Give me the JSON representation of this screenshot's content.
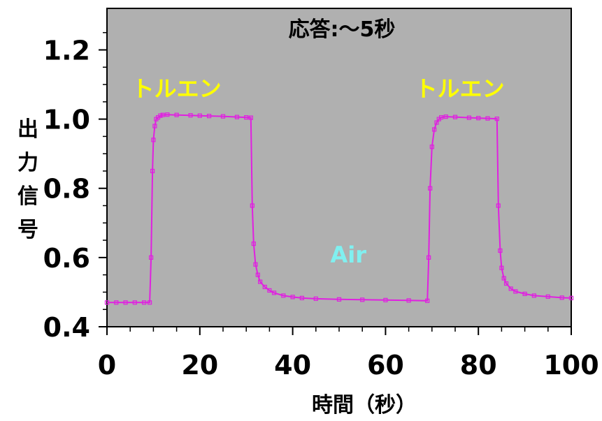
{
  "chart_data": {
    "type": "line",
    "title": "応答:～5秒",
    "xlabel": "時間（秒）",
    "ylabel": "出力信号",
    "xlim": [
      0,
      100
    ],
    "ylim": [
      0.4,
      1.32
    ],
    "x_ticks": [
      "0",
      "20",
      "40",
      "60",
      "80",
      "100"
    ],
    "y_ticks": [
      "0.4",
      "0.6",
      "0.8",
      "1.0",
      "1.2"
    ],
    "grid": false,
    "background_color": "#b0b0b0",
    "series_color": "#e020e0",
    "annotations": [
      {
        "text": "トルエン",
        "x": 15,
        "y": 1.09,
        "color": "#ffff00"
      },
      {
        "text": "トルエン",
        "x": 76,
        "y": 1.09,
        "color": "#ffff00"
      },
      {
        "text": "Air",
        "x": 52,
        "y": 0.61,
        "color": "#80f0f0"
      }
    ],
    "series": [
      {
        "x": [
          0,
          2,
          4,
          6,
          8,
          9.2,
          9.5,
          9.8,
          10.0,
          10.3,
          10.6,
          11,
          11.5,
          12,
          13,
          15,
          18,
          20,
          22,
          25,
          28,
          30,
          31,
          31.3,
          31.6,
          32,
          32.5,
          33,
          34,
          35,
          36,
          38,
          40,
          42,
          45,
          50,
          55,
          60,
          65,
          69,
          69.3,
          69.6,
          70,
          70.5,
          71,
          71.5,
          72,
          73,
          75,
          78,
          80,
          82,
          84,
          84.3,
          84.7,
          85,
          85.5,
          86,
          87,
          88,
          90,
          92,
          95,
          98,
          100
        ],
        "y": [
          0.47,
          0.47,
          0.47,
          0.47,
          0.47,
          0.47,
          0.6,
          0.85,
          0.94,
          0.98,
          1.0,
          1.005,
          1.01,
          1.012,
          1.013,
          1.012,
          1.011,
          1.01,
          1.009,
          1.008,
          1.006,
          1.005,
          1.004,
          0.75,
          0.64,
          0.58,
          0.55,
          0.53,
          0.515,
          0.505,
          0.498,
          0.49,
          0.486,
          0.483,
          0.481,
          0.479,
          0.478,
          0.477,
          0.476,
          0.475,
          0.6,
          0.8,
          0.92,
          0.97,
          0.99,
          1.0,
          1.005,
          1.007,
          1.006,
          1.004,
          1.003,
          1.002,
          1.001,
          0.75,
          0.62,
          0.57,
          0.54,
          0.525,
          0.51,
          0.502,
          0.495,
          0.49,
          0.487,
          0.484,
          0.483
        ]
      }
    ]
  }
}
